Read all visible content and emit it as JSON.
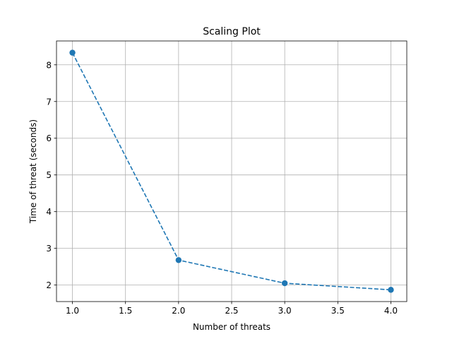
{
  "chart_data": {
    "type": "line",
    "title": "Scaling Plot",
    "xlabel": "Number of threats",
    "ylabel": "Time of threat (seconds)",
    "x": [
      1.0,
      2.0,
      3.0,
      4.0
    ],
    "series": [
      {
        "values": [
          8.33,
          2.68,
          2.05,
          1.87
        ],
        "color": "#1f77b4",
        "line_style": "dashed",
        "marker": "circle"
      }
    ],
    "xlim": [
      0.85,
      4.15
    ],
    "ylim": [
      1.55,
      8.65
    ],
    "xticks": [
      1.0,
      1.5,
      2.0,
      2.5,
      3.0,
      3.5,
      4.0
    ],
    "xtick_labels": [
      "1.0",
      "1.5",
      "2.0",
      "2.5",
      "3.0",
      "3.5",
      "4.0"
    ],
    "yticks": [
      2,
      3,
      4,
      5,
      6,
      7,
      8
    ],
    "ytick_labels": [
      "2",
      "3",
      "4",
      "5",
      "6",
      "7",
      "8"
    ],
    "grid": true,
    "legend": "none"
  }
}
